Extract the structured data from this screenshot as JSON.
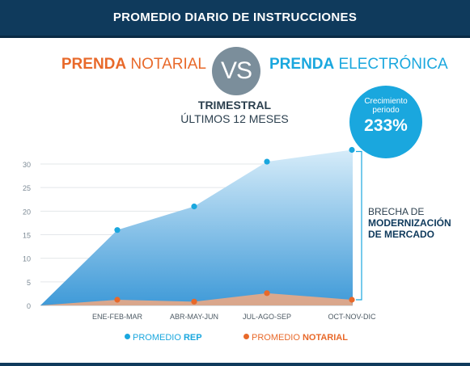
{
  "header": {
    "title": "PROMEDIO DIARIO DE INSTRUCCIONES"
  },
  "comparison": {
    "left_bold": "PRENDA",
    "left_rest": " NOTARIAL",
    "vs": "VS",
    "right_bold": "PRENDA",
    "right_rest": " ELECTRÓNICA"
  },
  "period": {
    "line1": "TRIMESTRAL",
    "line2": "ÚLTIMOS 12 MESES"
  },
  "growth": {
    "label": "Crecimiento periodo",
    "value": "233%"
  },
  "gap": {
    "line1": "BRECHA DE",
    "line2": "MODERNIZACIÓN DE MERCADO"
  },
  "legend": {
    "rep_prefix": "PROMEDIO ",
    "rep_bold": "REP",
    "notarial_prefix": "PROMEDIO ",
    "notarial_bold": "NOTARIAL"
  },
  "colors": {
    "header_bg": "#0f3a5c",
    "rep": "#1aa7de",
    "notarial": "#e8692a",
    "vs_circle": "#7b8e9b"
  },
  "chart_data": {
    "type": "area",
    "categories": [
      "ENE-FEB-MAR",
      "ABR-MAY-JUN",
      "JUL-AGO-SEP",
      "OCT-NOV-DIC"
    ],
    "yticks": [
      0,
      5,
      10,
      15,
      20,
      25,
      30
    ],
    "ylim": [
      0,
      35
    ],
    "series": [
      {
        "name": "PROMEDIO REP",
        "values": [
          16,
          21,
          30.5,
          33
        ],
        "color": "#1aa7de"
      },
      {
        "name": "PROMEDIO NOTARIAL",
        "values": [
          1.2,
          0.8,
          2.6,
          1.2
        ],
        "color": "#e8692a"
      }
    ],
    "grid": true,
    "legend": "bottom"
  }
}
